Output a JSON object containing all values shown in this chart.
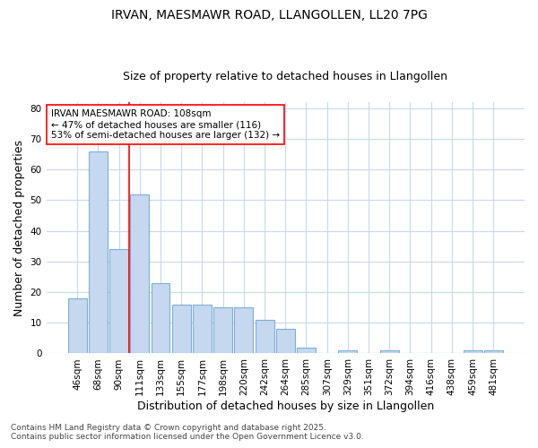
{
  "title_line1": "IRVAN, MAESMAWR ROAD, LLANGOLLEN, LL20 7PG",
  "title_line2": "Size of property relative to detached houses in Llangollen",
  "xlabel": "Distribution of detached houses by size in Llangollen",
  "ylabel": "Number of detached properties",
  "categories": [
    "46sqm",
    "68sqm",
    "90sqm",
    "111sqm",
    "133sqm",
    "155sqm",
    "177sqm",
    "198sqm",
    "220sqm",
    "242sqm",
    "264sqm",
    "285sqm",
    "307sqm",
    "329sqm",
    "351sqm",
    "372sqm",
    "394sqm",
    "416sqm",
    "438sqm",
    "459sqm",
    "481sqm"
  ],
  "values": [
    18,
    66,
    34,
    52,
    23,
    16,
    16,
    15,
    15,
    11,
    8,
    2,
    0,
    1,
    0,
    1,
    0,
    0,
    0,
    1,
    1
  ],
  "bar_color": "#c5d8f0",
  "bar_edge_color": "#7bafd4",
  "grid_color": "#c8d8ee",
  "background_color": "#ffffff",
  "plot_bg_color": "#ffffff",
  "vline_x": 2.5,
  "vline_color": "red",
  "annotation_text": "IRVAN MAESMAWR ROAD: 108sqm\n← 47% of detached houses are smaller (116)\n53% of semi-detached houses are larger (132) →",
  "annotation_box_color": "white",
  "annotation_box_edge": "red",
  "ylim": [
    0,
    82
  ],
  "yticks": [
    0,
    10,
    20,
    30,
    40,
    50,
    60,
    70,
    80
  ],
  "footer_line1": "Contains HM Land Registry data © Crown copyright and database right 2025.",
  "footer_line2": "Contains public sector information licensed under the Open Government Licence v3.0.",
  "title_fontsize": 10,
  "subtitle_fontsize": 9,
  "axis_label_fontsize": 9,
  "tick_fontsize": 7.5,
  "annotation_fontsize": 7.5,
  "footer_fontsize": 6.5
}
